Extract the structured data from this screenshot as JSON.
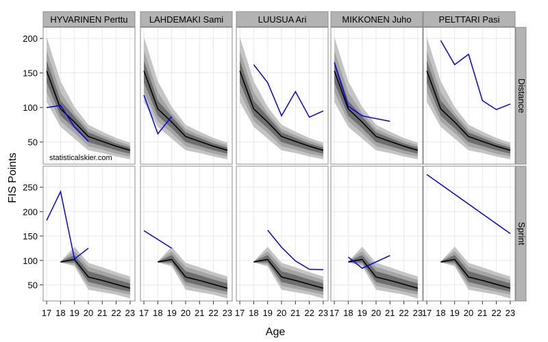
{
  "chart_data": {
    "type": "line",
    "xlabel": "Age",
    "ylabel": "FIS Points",
    "watermark": "statisticalskier.com",
    "colors": {
      "athlete_line": "#0000ee",
      "median_line": "#000000",
      "band_outer": "#c4c4c4",
      "band_mid": "#a4a4a4",
      "band_inner": "#6e6e6e",
      "strip_bg": "#b3b3b3",
      "panel_border": "#8c8c8c",
      "grid": "#e8e8e8"
    },
    "x_ticks": [
      17,
      18,
      19,
      20,
      21,
      22,
      23
    ],
    "x_range": [
      16.75,
      23.35
    ],
    "columns": [
      "HYVARINEN Perttu",
      "LAHDEMAKI Sami",
      "LUUSUA Ari",
      "MIKKONEN Juho",
      "PELTTARI Pasi"
    ],
    "rows": [
      {
        "label": "Distance",
        "y_range": [
          18,
          216
        ],
        "y_ticks": [
          50,
          100,
          150,
          200
        ],
        "baseline": {
          "x": [
            17,
            18,
            19,
            20,
            21,
            22,
            23
          ],
          "median": [
            153,
            98,
            79,
            58,
            51,
            44,
            38
          ],
          "bands": [
            {
              "level": "outer",
              "lower": [
                108,
                72,
                55,
                38,
                34,
                29,
                25
              ],
              "upper": [
                202,
                138,
                101,
                75,
                65,
                56,
                49
              ]
            },
            {
              "level": "mid",
              "lower": [
                122,
                80,
                63,
                44,
                39,
                33,
                29
              ],
              "upper": [
                182,
                122,
                92,
                69,
                60,
                52,
                45
              ]
            },
            {
              "level": "inner",
              "lower": [
                136,
                88,
                70,
                50,
                44,
                38,
                33
              ],
              "upper": [
                168,
                110,
                87,
                64,
                56,
                48,
                42
              ]
            }
          ]
        },
        "series": [
          {
            "name": "HYVARINEN Perttu",
            "x": [
              17,
              18,
              19,
              20
            ],
            "y": [
              100,
              103,
              72,
              51
            ]
          },
          {
            "name": "LAHDEMAKI Sami",
            "x": [
              17,
              18,
              19
            ],
            "y": [
              118,
              62,
              87
            ]
          },
          {
            "name": "LUUSUA Ari",
            "x": [
              18,
              19,
              20,
              21,
              22,
              23
            ],
            "y": [
              162,
              136,
              88,
              123,
              86,
              95
            ]
          },
          {
            "name": "MIKKONEN Juho",
            "x": [
              17,
              18,
              19,
              21
            ],
            "y": [
              165,
              102,
              88,
              80
            ]
          },
          {
            "name": "PELTTARI Pasi",
            "x": [
              18,
              19,
              20,
              21,
              22,
              23
            ],
            "y": [
              197,
              162,
              177,
              110,
              97,
              105
            ]
          }
        ]
      },
      {
        "label": "Sprint",
        "y_range": [
          17,
          293
        ],
        "y_ticks": [
          50,
          100,
          150,
          200,
          250
        ],
        "baseline": {
          "x": [
            18,
            19,
            20,
            21,
            22,
            23
          ],
          "median": [
            97,
            102,
            66,
            59,
            51,
            43
          ],
          "bands": [
            {
              "level": "outer",
              "lower": [
                96,
                88,
                40,
                35,
                30,
                22
              ],
              "upper": [
                98,
                128,
                95,
                86,
                76,
                67
              ]
            },
            {
              "level": "mid",
              "lower": [
                96,
                92,
                48,
                42,
                36,
                30
              ],
              "upper": [
                98,
                119,
                87,
                78,
                69,
                60
              ]
            },
            {
              "level": "inner",
              "lower": [
                96,
                96,
                56,
                49,
                42,
                36
              ],
              "upper": [
                98,
                111,
                78,
                70,
                61,
                53
              ]
            }
          ]
        },
        "series": [
          {
            "name": "HYVARINEN Perttu",
            "x": [
              17,
              18,
              19,
              20
            ],
            "y": [
              182,
              241,
              103,
              125
            ]
          },
          {
            "name": "LAHDEMAKI Sami",
            "x": [
              17,
              19
            ],
            "y": [
              161,
              125
            ]
          },
          {
            "name": "LUUSUA Ari",
            "x": [
              19,
              20,
              21,
              22,
              23
            ],
            "y": [
              162,
              127,
              99,
              82,
              81
            ]
          },
          {
            "name": "MIKKONEN Juho",
            "x": [
              18,
              19,
              21
            ],
            "y": [
              107,
              84,
              110
            ]
          },
          {
            "name": "PELTTARI Pasi",
            "x": [
              17,
              23
            ],
            "y": [
              276,
              155
            ]
          }
        ]
      }
    ]
  }
}
